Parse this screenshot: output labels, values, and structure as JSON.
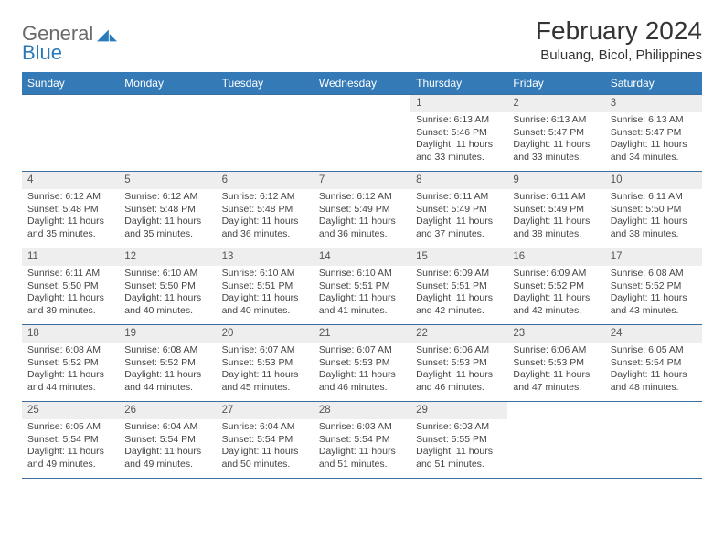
{
  "branding": {
    "word1": "General",
    "word2": "Blue",
    "word1_color": "#6a6a6a",
    "word2_color": "#2a7ab9"
  },
  "header": {
    "title": "February 2024",
    "subtitle": "Buluang, Bicol, Philippines"
  },
  "colors": {
    "header_bg": "#337ab7",
    "header_text": "#ffffff",
    "daynum_bg": "#eeeeee",
    "border": "#3a6e9e",
    "body_text": "#333333"
  },
  "weekdays": [
    "Sunday",
    "Monday",
    "Tuesday",
    "Wednesday",
    "Thursday",
    "Friday",
    "Saturday"
  ],
  "weeks": [
    [
      {
        "n": "",
        "sunrise": "",
        "sunset": "",
        "daylight": ""
      },
      {
        "n": "",
        "sunrise": "",
        "sunset": "",
        "daylight": ""
      },
      {
        "n": "",
        "sunrise": "",
        "sunset": "",
        "daylight": ""
      },
      {
        "n": "",
        "sunrise": "",
        "sunset": "",
        "daylight": ""
      },
      {
        "n": "1",
        "sunrise": "Sunrise: 6:13 AM",
        "sunset": "Sunset: 5:46 PM",
        "daylight": "Daylight: 11 hours and 33 minutes."
      },
      {
        "n": "2",
        "sunrise": "Sunrise: 6:13 AM",
        "sunset": "Sunset: 5:47 PM",
        "daylight": "Daylight: 11 hours and 33 minutes."
      },
      {
        "n": "3",
        "sunrise": "Sunrise: 6:13 AM",
        "sunset": "Sunset: 5:47 PM",
        "daylight": "Daylight: 11 hours and 34 minutes."
      }
    ],
    [
      {
        "n": "4",
        "sunrise": "Sunrise: 6:12 AM",
        "sunset": "Sunset: 5:48 PM",
        "daylight": "Daylight: 11 hours and 35 minutes."
      },
      {
        "n": "5",
        "sunrise": "Sunrise: 6:12 AM",
        "sunset": "Sunset: 5:48 PM",
        "daylight": "Daylight: 11 hours and 35 minutes."
      },
      {
        "n": "6",
        "sunrise": "Sunrise: 6:12 AM",
        "sunset": "Sunset: 5:48 PM",
        "daylight": "Daylight: 11 hours and 36 minutes."
      },
      {
        "n": "7",
        "sunrise": "Sunrise: 6:12 AM",
        "sunset": "Sunset: 5:49 PM",
        "daylight": "Daylight: 11 hours and 36 minutes."
      },
      {
        "n": "8",
        "sunrise": "Sunrise: 6:11 AM",
        "sunset": "Sunset: 5:49 PM",
        "daylight": "Daylight: 11 hours and 37 minutes."
      },
      {
        "n": "9",
        "sunrise": "Sunrise: 6:11 AM",
        "sunset": "Sunset: 5:49 PM",
        "daylight": "Daylight: 11 hours and 38 minutes."
      },
      {
        "n": "10",
        "sunrise": "Sunrise: 6:11 AM",
        "sunset": "Sunset: 5:50 PM",
        "daylight": "Daylight: 11 hours and 38 minutes."
      }
    ],
    [
      {
        "n": "11",
        "sunrise": "Sunrise: 6:11 AM",
        "sunset": "Sunset: 5:50 PM",
        "daylight": "Daylight: 11 hours and 39 minutes."
      },
      {
        "n": "12",
        "sunrise": "Sunrise: 6:10 AM",
        "sunset": "Sunset: 5:50 PM",
        "daylight": "Daylight: 11 hours and 40 minutes."
      },
      {
        "n": "13",
        "sunrise": "Sunrise: 6:10 AM",
        "sunset": "Sunset: 5:51 PM",
        "daylight": "Daylight: 11 hours and 40 minutes."
      },
      {
        "n": "14",
        "sunrise": "Sunrise: 6:10 AM",
        "sunset": "Sunset: 5:51 PM",
        "daylight": "Daylight: 11 hours and 41 minutes."
      },
      {
        "n": "15",
        "sunrise": "Sunrise: 6:09 AM",
        "sunset": "Sunset: 5:51 PM",
        "daylight": "Daylight: 11 hours and 42 minutes."
      },
      {
        "n": "16",
        "sunrise": "Sunrise: 6:09 AM",
        "sunset": "Sunset: 5:52 PM",
        "daylight": "Daylight: 11 hours and 42 minutes."
      },
      {
        "n": "17",
        "sunrise": "Sunrise: 6:08 AM",
        "sunset": "Sunset: 5:52 PM",
        "daylight": "Daylight: 11 hours and 43 minutes."
      }
    ],
    [
      {
        "n": "18",
        "sunrise": "Sunrise: 6:08 AM",
        "sunset": "Sunset: 5:52 PM",
        "daylight": "Daylight: 11 hours and 44 minutes."
      },
      {
        "n": "19",
        "sunrise": "Sunrise: 6:08 AM",
        "sunset": "Sunset: 5:52 PM",
        "daylight": "Daylight: 11 hours and 44 minutes."
      },
      {
        "n": "20",
        "sunrise": "Sunrise: 6:07 AM",
        "sunset": "Sunset: 5:53 PM",
        "daylight": "Daylight: 11 hours and 45 minutes."
      },
      {
        "n": "21",
        "sunrise": "Sunrise: 6:07 AM",
        "sunset": "Sunset: 5:53 PM",
        "daylight": "Daylight: 11 hours and 46 minutes."
      },
      {
        "n": "22",
        "sunrise": "Sunrise: 6:06 AM",
        "sunset": "Sunset: 5:53 PM",
        "daylight": "Daylight: 11 hours and 46 minutes."
      },
      {
        "n": "23",
        "sunrise": "Sunrise: 6:06 AM",
        "sunset": "Sunset: 5:53 PM",
        "daylight": "Daylight: 11 hours and 47 minutes."
      },
      {
        "n": "24",
        "sunrise": "Sunrise: 6:05 AM",
        "sunset": "Sunset: 5:54 PM",
        "daylight": "Daylight: 11 hours and 48 minutes."
      }
    ],
    [
      {
        "n": "25",
        "sunrise": "Sunrise: 6:05 AM",
        "sunset": "Sunset: 5:54 PM",
        "daylight": "Daylight: 11 hours and 49 minutes."
      },
      {
        "n": "26",
        "sunrise": "Sunrise: 6:04 AM",
        "sunset": "Sunset: 5:54 PM",
        "daylight": "Daylight: 11 hours and 49 minutes."
      },
      {
        "n": "27",
        "sunrise": "Sunrise: 6:04 AM",
        "sunset": "Sunset: 5:54 PM",
        "daylight": "Daylight: 11 hours and 50 minutes."
      },
      {
        "n": "28",
        "sunrise": "Sunrise: 6:03 AM",
        "sunset": "Sunset: 5:54 PM",
        "daylight": "Daylight: 11 hours and 51 minutes."
      },
      {
        "n": "29",
        "sunrise": "Sunrise: 6:03 AM",
        "sunset": "Sunset: 5:55 PM",
        "daylight": "Daylight: 11 hours and 51 minutes."
      },
      {
        "n": "",
        "sunrise": "",
        "sunset": "",
        "daylight": ""
      },
      {
        "n": "",
        "sunrise": "",
        "sunset": "",
        "daylight": ""
      }
    ]
  ]
}
